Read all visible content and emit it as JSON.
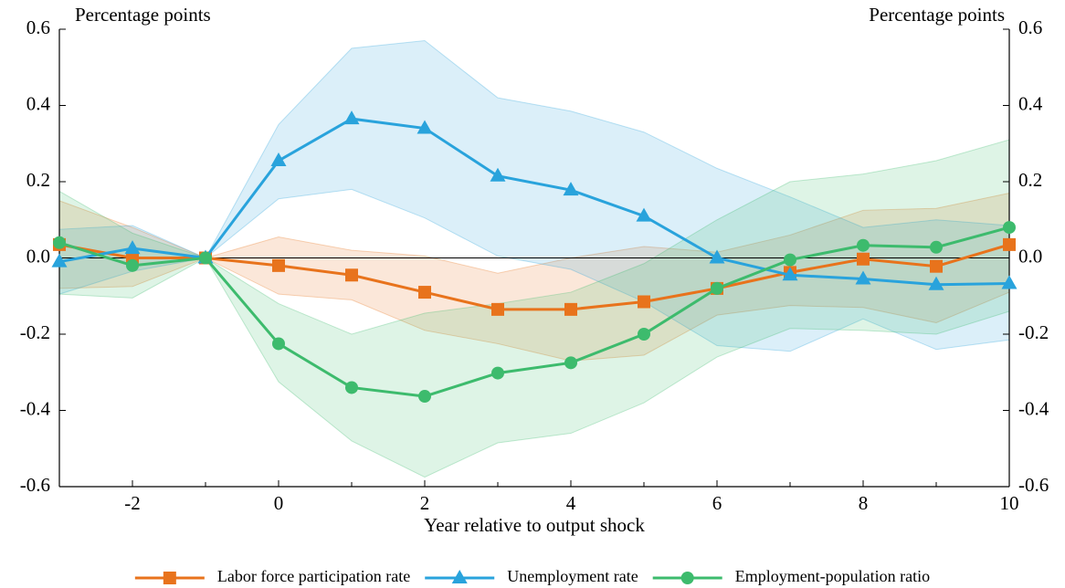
{
  "chart_data": {
    "type": "line",
    "y_label": "Percentage points",
    "y2_label": "Percentage points",
    "x_label": "Year relative to output shock",
    "x": [
      -3,
      -2,
      -1,
      0,
      1,
      2,
      3,
      4,
      5,
      6,
      7,
      8,
      9,
      10
    ],
    "xlim": [
      -3,
      10
    ],
    "xticks": [
      -2,
      0,
      2,
      4,
      6,
      8,
      10
    ],
    "xminor_ticks": [
      -3,
      -1,
      1,
      3,
      5,
      7,
      9
    ],
    "ylim": [
      -0.6,
      0.6
    ],
    "yticks": [
      -0.6,
      -0.4,
      -0.2,
      {
        "value": 0,
        "label": "0.0"
      },
      0.2,
      0.4,
      0.6
    ],
    "y2lim": [
      -0.6,
      0.6
    ],
    "y2ticks": [
      -0.6,
      -0.4,
      -0.2,
      {
        "value": 0,
        "label": "0.0"
      },
      0.2,
      0.4,
      0.6
    ],
    "hline": 0,
    "legend": "bottom",
    "series": [
      {
        "name": "Labor force participation rate",
        "color": "#e8731c",
        "marker": "square",
        "values": [
          0.035,
          0.0,
          0.0,
          -0.02,
          -0.045,
          -0.09,
          -0.135,
          -0.135,
          -0.115,
          -0.08,
          -0.038,
          -0.003,
          -0.022,
          0.035
        ],
        "upper": [
          0.15,
          0.08,
          0.0,
          0.055,
          0.02,
          0.005,
          -0.04,
          0.0,
          0.03,
          0.015,
          0.06,
          0.125,
          0.13,
          0.17
        ],
        "lower": [
          -0.08,
          -0.075,
          0.0,
          -0.095,
          -0.11,
          -0.19,
          -0.225,
          -0.27,
          -0.255,
          -0.15,
          -0.125,
          -0.13,
          -0.17,
          -0.09
        ]
      },
      {
        "name": "Unemployment rate",
        "color": "#29a3dc",
        "marker": "triangle",
        "values": [
          -0.01,
          0.025,
          0.0,
          0.255,
          0.365,
          0.34,
          0.215,
          0.178,
          0.11,
          0.0,
          -0.045,
          -0.055,
          -0.07,
          -0.067
        ],
        "upper": [
          0.075,
          0.085,
          0.0,
          0.35,
          0.55,
          0.57,
          0.42,
          0.385,
          0.33,
          0.235,
          0.16,
          0.08,
          0.1,
          0.085
        ],
        "lower": [
          -0.095,
          -0.035,
          0.0,
          0.155,
          0.18,
          0.105,
          0.005,
          -0.03,
          -0.115,
          -0.23,
          -0.245,
          -0.16,
          -0.24,
          -0.215
        ]
      },
      {
        "name": "Employment-population ratio",
        "color": "#3dbb6d",
        "marker": "circle",
        "values": [
          0.04,
          -0.02,
          0.0,
          -0.225,
          -0.34,
          -0.363,
          -0.302,
          -0.275,
          -0.2,
          -0.08,
          -0.005,
          0.033,
          0.028,
          0.08
        ],
        "upper": [
          0.175,
          0.065,
          0.0,
          -0.12,
          -0.2,
          -0.145,
          -0.12,
          -0.09,
          -0.015,
          0.1,
          0.2,
          0.22,
          0.255,
          0.31
        ],
        "lower": [
          -0.095,
          -0.105,
          0.0,
          -0.325,
          -0.48,
          -0.575,
          -0.485,
          -0.46,
          -0.38,
          -0.26,
          -0.185,
          -0.19,
          -0.2,
          -0.14
        ]
      }
    ]
  }
}
